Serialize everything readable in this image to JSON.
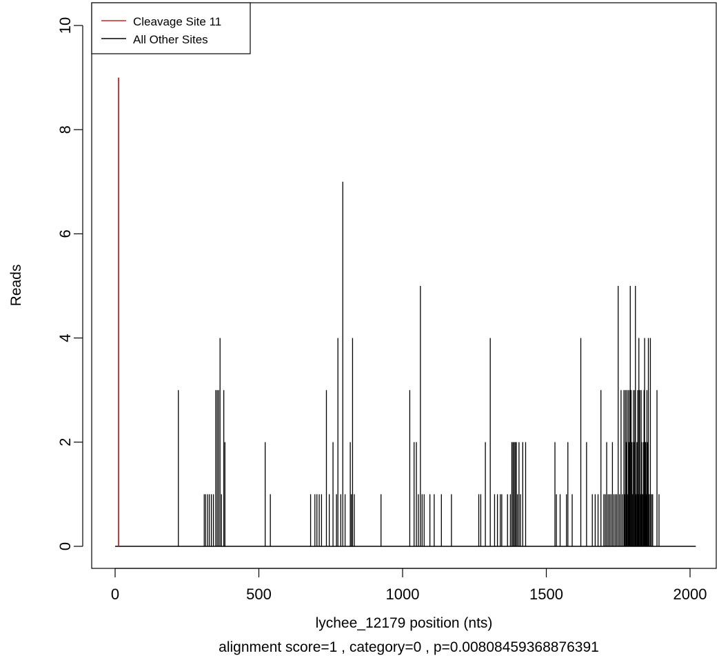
{
  "chart_data": {
    "type": "bar",
    "xlabel": "lychee_12179 position (nts)",
    "subtitle": "alignment score=1 , category=0 , p=0.00808459368876391",
    "ylabel": "Reads",
    "xlim": [
      0,
      2020
    ],
    "ylim": [
      0,
      10
    ],
    "x_ticks": [
      "0",
      "500",
      "1000",
      "1500",
      "2000"
    ],
    "y_ticks": [
      "0",
      "2",
      "4",
      "6",
      "8",
      "10"
    ],
    "legend_position": "top-left",
    "legend": [
      {
        "label": "Cleavage Site 11",
        "color": "#cc2222"
      },
      {
        "label": "All Other Sites",
        "color": "#000000"
      }
    ],
    "series": [
      {
        "name": "Cleavage Site 11",
        "color": "#cc2222",
        "points": [
          [
            12,
            9
          ]
        ]
      },
      {
        "name": "All Other Sites",
        "color": "#000000",
        "points": [
          [
            220,
            3
          ],
          [
            310,
            1
          ],
          [
            315,
            1
          ],
          [
            322,
            1
          ],
          [
            328,
            1
          ],
          [
            335,
            1
          ],
          [
            342,
            1
          ],
          [
            350,
            3
          ],
          [
            355,
            3
          ],
          [
            360,
            3
          ],
          [
            365,
            4
          ],
          [
            370,
            1
          ],
          [
            378,
            3
          ],
          [
            382,
            2
          ],
          [
            522,
            2
          ],
          [
            540,
            1
          ],
          [
            680,
            1
          ],
          [
            695,
            1
          ],
          [
            702,
            1
          ],
          [
            710,
            1
          ],
          [
            718,
            1
          ],
          [
            735,
            3
          ],
          [
            745,
            1
          ],
          [
            758,
            2
          ],
          [
            770,
            1
          ],
          [
            775,
            4
          ],
          [
            785,
            1
          ],
          [
            792,
            7
          ],
          [
            800,
            1
          ],
          [
            818,
            2
          ],
          [
            822,
            1
          ],
          [
            826,
            4
          ],
          [
            832,
            1
          ],
          [
            925,
            1
          ],
          [
            1025,
            3
          ],
          [
            1040,
            2
          ],
          [
            1048,
            2
          ],
          [
            1055,
            1
          ],
          [
            1062,
            5
          ],
          [
            1068,
            1
          ],
          [
            1075,
            1
          ],
          [
            1095,
            1
          ],
          [
            1110,
            1
          ],
          [
            1135,
            1
          ],
          [
            1170,
            1
          ],
          [
            1265,
            1
          ],
          [
            1272,
            1
          ],
          [
            1288,
            2
          ],
          [
            1305,
            4
          ],
          [
            1320,
            1
          ],
          [
            1330,
            1
          ],
          [
            1340,
            1
          ],
          [
            1345,
            1
          ],
          [
            1365,
            1
          ],
          [
            1375,
            1
          ],
          [
            1380,
            2
          ],
          [
            1384,
            2
          ],
          [
            1388,
            2
          ],
          [
            1392,
            2
          ],
          [
            1396,
            2
          ],
          [
            1400,
            1
          ],
          [
            1405,
            2
          ],
          [
            1410,
            1
          ],
          [
            1418,
            2
          ],
          [
            1428,
            2
          ],
          [
            1530,
            2
          ],
          [
            1535,
            1
          ],
          [
            1548,
            1
          ],
          [
            1570,
            1
          ],
          [
            1575,
            2
          ],
          [
            1590,
            1
          ],
          [
            1620,
            4
          ],
          [
            1640,
            2
          ],
          [
            1660,
            1
          ],
          [
            1670,
            1
          ],
          [
            1680,
            1
          ],
          [
            1690,
            3
          ],
          [
            1700,
            1
          ],
          [
            1705,
            1
          ],
          [
            1710,
            2
          ],
          [
            1715,
            1
          ],
          [
            1720,
            1
          ],
          [
            1725,
            1
          ],
          [
            1730,
            2
          ],
          [
            1735,
            1
          ],
          [
            1740,
            1
          ],
          [
            1745,
            1
          ],
          [
            1750,
            5
          ],
          [
            1755,
            1
          ],
          [
            1760,
            3
          ],
          [
            1765,
            1
          ],
          [
            1770,
            3
          ],
          [
            1772,
            1
          ],
          [
            1775,
            3
          ],
          [
            1778,
            2
          ],
          [
            1780,
            3
          ],
          [
            1782,
            1
          ],
          [
            1785,
            3
          ],
          [
            1788,
            2
          ],
          [
            1790,
            3
          ],
          [
            1792,
            5
          ],
          [
            1795,
            3
          ],
          [
            1798,
            2
          ],
          [
            1800,
            1
          ],
          [
            1803,
            3
          ],
          [
            1805,
            2
          ],
          [
            1808,
            3
          ],
          [
            1810,
            5
          ],
          [
            1812,
            1
          ],
          [
            1815,
            2
          ],
          [
            1818,
            3
          ],
          [
            1820,
            1
          ],
          [
            1822,
            4
          ],
          [
            1825,
            3
          ],
          [
            1828,
            1
          ],
          [
            1830,
            3
          ],
          [
            1832,
            2
          ],
          [
            1835,
            1
          ],
          [
            1838,
            2
          ],
          [
            1840,
            3
          ],
          [
            1842,
            4
          ],
          [
            1844,
            2
          ],
          [
            1846,
            2
          ],
          [
            1848,
            1
          ],
          [
            1850,
            3
          ],
          [
            1852,
            2
          ],
          [
            1855,
            4
          ],
          [
            1858,
            1
          ],
          [
            1862,
            4
          ],
          [
            1866,
            1
          ],
          [
            1870,
            1
          ],
          [
            1885,
            3
          ],
          [
            1892,
            1
          ]
        ]
      }
    ]
  }
}
